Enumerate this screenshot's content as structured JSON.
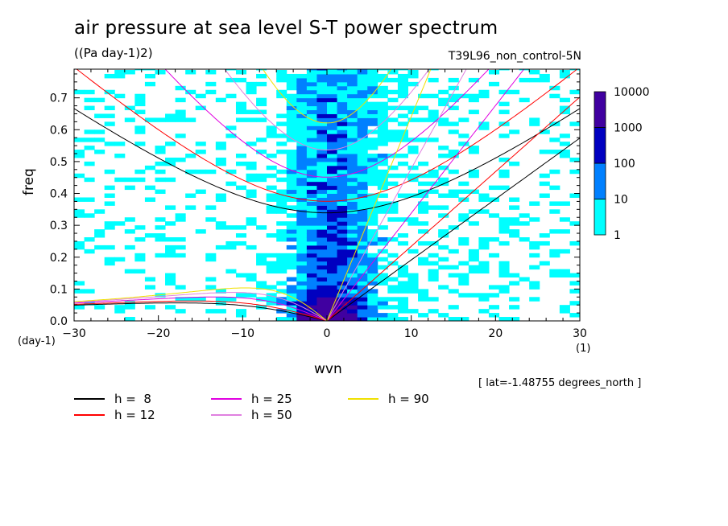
{
  "header": {
    "title": "air pressure at sea level S-T power spectrum",
    "units": "((Pa day-1)2)",
    "run": "T39L96_non_control-5N",
    "latitude": "[ lat=-1.48755 degrees_north ]"
  },
  "chart_data": {
    "type": "heatmap",
    "xlabel": "wvn",
    "ylabel": "freq",
    "x_unit": "(1)",
    "y_unit": "(day-1)",
    "xlim": [
      -30,
      30
    ],
    "ylim": [
      0.0,
      0.79
    ],
    "x_ticks": [
      -30,
      -20,
      -10,
      0,
      10,
      20,
      30
    ],
    "y_ticks": [
      0.0,
      0.1,
      0.2,
      0.3,
      0.4,
      0.5,
      0.6,
      0.7
    ],
    "colorbar": {
      "levels": [
        "1",
        "10",
        "100",
        "1000",
        "10000"
      ],
      "colors": [
        "#00ffff",
        "#0080ff",
        "#0000c0",
        "#4000a0"
      ]
    },
    "dispersion_curves": [
      {
        "label": "h =  8",
        "color": "#000000"
      },
      {
        "label": "h = 12",
        "color": "#ff0000"
      },
      {
        "label": "h = 25",
        "color": "#e000e0"
      },
      {
        "label": "h = 50",
        "color": "#e080e0"
      },
      {
        "label": "h = 90",
        "color": "#f0e000"
      }
    ]
  }
}
